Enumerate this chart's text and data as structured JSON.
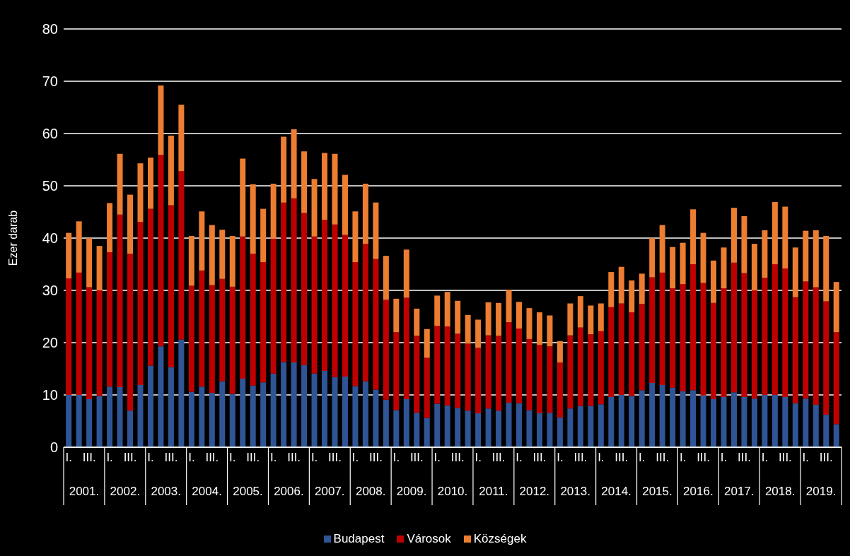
{
  "chart_data": {
    "type": "bar",
    "ylabel": "Ezer darab",
    "stacked": true,
    "grid": "y",
    "legend": "bottom",
    "ylim": [
      0,
      80
    ],
    "yticks": [
      0,
      10,
      20,
      30,
      40,
      50,
      60,
      70,
      80
    ],
    "categories": [
      "I.",
      null,
      "III.",
      null,
      "I.",
      null,
      "III.",
      null,
      "I.",
      null,
      "III.",
      null,
      "I.",
      null,
      "III.",
      null,
      "I.",
      null,
      "III.",
      null,
      "I.",
      null,
      "III.",
      null,
      "I.",
      null,
      "III.",
      null,
      "I.",
      null,
      "III.",
      null,
      "I.",
      null,
      "III.",
      null,
      "I.",
      null,
      "III.",
      null,
      "I.",
      null,
      "III.",
      null,
      "I.",
      null,
      "III.",
      null,
      "I.",
      null,
      "III.",
      null,
      "I.",
      null,
      "III.",
      null,
      "I.",
      null,
      "III.",
      null,
      "I.",
      null,
      "III.",
      null,
      "I.",
      null,
      "III.",
      null,
      "I.",
      null,
      "III.",
      null,
      "I.",
      null,
      "III.",
      null
    ],
    "annotations": [
      "2001.",
      "2002.",
      "2003.",
      "2004.",
      "2005.",
      "2006.",
      "2007.",
      "2008.",
      "2009.",
      "2010.",
      "2011.",
      "2012.",
      "2013.",
      "2014.",
      "2015.",
      "2016.",
      "2017.",
      "2018.",
      "2019."
    ],
    "series": [
      {
        "name": "Budapest",
        "color": "#2f5597",
        "values": [
          10,
          10,
          9.2,
          9.8,
          11.6,
          11.5,
          7,
          11.9,
          15.6,
          19.3,
          15.3,
          20.6,
          10.6,
          11.6,
          10.4,
          12.6,
          10.2,
          13.1,
          11.8,
          12.4,
          14.1,
          16.3,
          16.2,
          15.7,
          14.1,
          14.6,
          13.4,
          13.5,
          11.7,
          12.6,
          11,
          9.1,
          7.1,
          9.2,
          6.6,
          5.6,
          8.3,
          8,
          7.5,
          7,
          6.5,
          7.4,
          7,
          8.5,
          8.4,
          7.1,
          6.5,
          6.6,
          5.7,
          7.4,
          7.9,
          7.9,
          8.2,
          9.6,
          10,
          9.8,
          10.9,
          12.3,
          11.9,
          11.4,
          10.7,
          10.9,
          9.9,
          9.2,
          9.6,
          10.5,
          9.6,
          9.3,
          10,
          10,
          9.6,
          8.4,
          9.3,
          8.1,
          6.2,
          4.4
        ]
      },
      {
        "name": "Városok",
        "color": "#c00000",
        "values": [
          22.3,
          23.4,
          21.4,
          20.2,
          25.7,
          33,
          30,
          31.2,
          30,
          36.6,
          31,
          32.2,
          20.3,
          22.2,
          20.6,
          19.6,
          20.5,
          27.2,
          25.2,
          23,
          25.8,
          30.5,
          31.4,
          29.1,
          26.2,
          28.9,
          29.2,
          27.1,
          23.7,
          26.3,
          25,
          19.1,
          14.9,
          19.4,
          14.7,
          11.5,
          14.9,
          15.1,
          14.2,
          12.8,
          12.5,
          14,
          14.3,
          15.4,
          14.3,
          13.6,
          13.1,
          12.7,
          10.5,
          14,
          15,
          13.7,
          14,
          17.2,
          17.5,
          16,
          16.5,
          20.2,
          21.5,
          19,
          20.5,
          24.1,
          21.5,
          18.4,
          20.8,
          24.8,
          23.7,
          20.7,
          22.4,
          25,
          24.6,
          20.3,
          22.4,
          22.5,
          21.7,
          17.6
        ]
      },
      {
        "name": "Községek",
        "color": "#ed7d31",
        "values": [
          8.7,
          9.8,
          9.4,
          8.5,
          9.4,
          11.6,
          11.3,
          11.2,
          9.8,
          13.3,
          13.3,
          12.7,
          9.5,
          11.3,
          11.5,
          9.4,
          9.7,
          14.9,
          13.3,
          10.2,
          10.5,
          12.6,
          13.2,
          11.8,
          11,
          12.8,
          13.5,
          11.5,
          9.7,
          11.5,
          10.8,
          8.4,
          6.4,
          9.2,
          5.2,
          5.5,
          5.8,
          6.6,
          6.3,
          5.5,
          5.4,
          6.3,
          6.3,
          6.2,
          5.1,
          5.9,
          6.2,
          5.9,
          4.1,
          6.1,
          6,
          5.5,
          5.3,
          6.7,
          7,
          6.1,
          5.8,
          7.5,
          9.1,
          7.9,
          7.9,
          10.5,
          9.6,
          8.1,
          7.8,
          10.5,
          10.9,
          8.9,
          9.1,
          11.9,
          11.8,
          9.5,
          9.7,
          10.9,
          12.5,
          9.6
        ]
      }
    ]
  }
}
